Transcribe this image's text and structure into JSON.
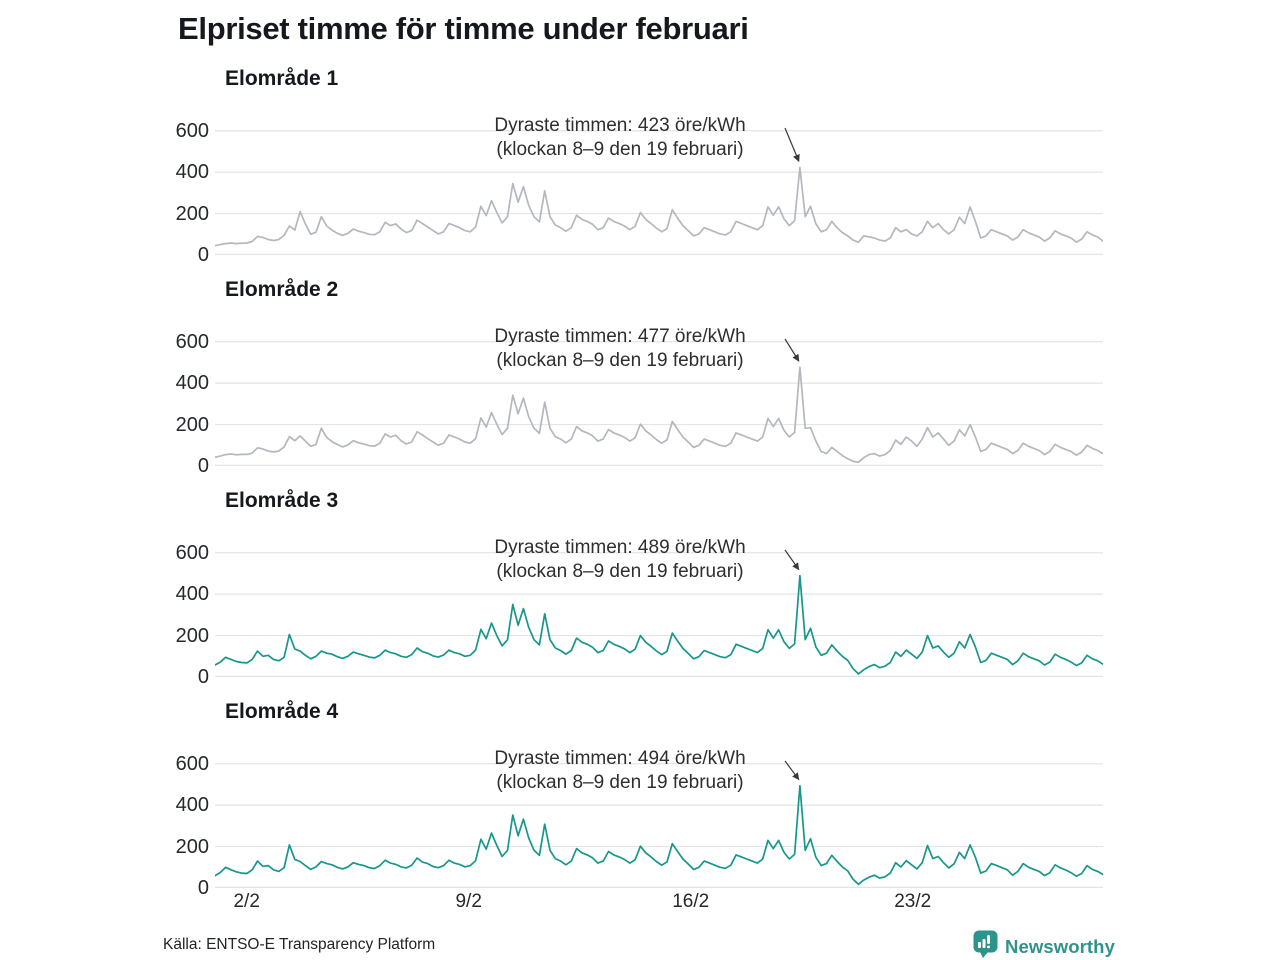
{
  "title": "Elpriset timme för timme under februari",
  "colors": {
    "gray_line": "#b5b7bf",
    "teal_line": "#17968b",
    "gridline": "#e3e4e6",
    "text_dark": "#15181c",
    "annotation_text": "#2e2e2e",
    "arrow": "#3a3a3a",
    "brand_teal": "#2e938b"
  },
  "y_ticks": [
    600,
    400,
    200,
    0
  ],
  "x_ticks": [
    {
      "label": "2/2",
      "day": 2
    },
    {
      "label": "9/2",
      "day": 9
    },
    {
      "label": "16/2",
      "day": 16
    },
    {
      "label": "23/2",
      "day": 23
    }
  ],
  "chart_data": [
    {
      "type": "line",
      "title": "Elområde 1",
      "color": "#b5b7bf",
      "ylim": [
        0,
        700
      ],
      "y_ticks": [
        0,
        200,
        400,
        600
      ],
      "x_range_days": 28,
      "sampling": "every 4 hours, 1–28 februari",
      "annotation": {
        "line1": "Dyraste timmen: 423 öre/kWh",
        "line2": "(klockan 8–9 den 19 februari)",
        "peak_value": 423
      },
      "values": [
        45,
        50,
        55,
        58,
        55,
        57,
        58,
        65,
        90,
        85,
        75,
        70,
        75,
        95,
        140,
        120,
        210,
        150,
        100,
        110,
        185,
        140,
        120,
        105,
        95,
        105,
        125,
        115,
        108,
        100,
        98,
        112,
        158,
        142,
        150,
        125,
        108,
        118,
        168,
        152,
        135,
        118,
        102,
        112,
        152,
        142,
        132,
        118,
        112,
        135,
        235,
        190,
        262,
        205,
        155,
        185,
        345,
        255,
        330,
        240,
        185,
        160,
        310,
        185,
        145,
        132,
        115,
        132,
        192,
        172,
        162,
        148,
        122,
        132,
        178,
        162,
        152,
        140,
        122,
        138,
        205,
        172,
        152,
        130,
        112,
        128,
        218,
        178,
        142,
        118,
        92,
        102,
        132,
        122,
        112,
        102,
        97,
        112,
        162,
        152,
        142,
        132,
        122,
        142,
        232,
        192,
        232,
        175,
        142,
        165,
        423,
        185,
        235,
        150,
        112,
        122,
        162,
        132,
        108,
        92,
        72,
        62,
        92,
        88,
        82,
        72,
        67,
        82,
        132,
        112,
        122,
        102,
        92,
        112,
        162,
        132,
        152,
        122,
        102,
        122,
        182,
        152,
        232,
        162,
        82,
        92,
        122,
        112,
        102,
        92,
        72,
        87,
        122,
        107,
        97,
        87,
        67,
        82,
        117,
        102,
        92,
        82,
        62,
        77,
        112,
        97,
        87,
        67
      ]
    },
    {
      "type": "line",
      "title": "Elområde 2",
      "color": "#b5b7bf",
      "ylim": [
        0,
        700
      ],
      "y_ticks": [
        0,
        200,
        400,
        600
      ],
      "x_range_days": 28,
      "sampling": "every 4 hours, 1–28 februari",
      "annotation": {
        "line1": "Dyraste timmen: 477 öre/kWh",
        "line2": "(klockan 8–9 den 19 februari)",
        "peak_value": 477
      },
      "values": [
        42,
        48,
        55,
        58,
        54,
        56,
        56,
        62,
        88,
        82,
        72,
        68,
        72,
        92,
        142,
        122,
        145,
        120,
        95,
        105,
        182,
        138,
        118,
        104,
        92,
        102,
        122,
        112,
        106,
        98,
        96,
        110,
        155,
        140,
        148,
        122,
        106,
        116,
        165,
        150,
        132,
        116,
        100,
        110,
        150,
        140,
        130,
        116,
        110,
        132,
        232,
        188,
        258,
        202,
        152,
        182,
        342,
        252,
        328,
        238,
        182,
        158,
        308,
        182,
        142,
        130,
        112,
        130,
        190,
        170,
        160,
        146,
        120,
        130,
        176,
        160,
        150,
        138,
        120,
        136,
        202,
        170,
        150,
        128,
        110,
        126,
        215,
        176,
        140,
        116,
        90,
        100,
        130,
        120,
        110,
        100,
        95,
        110,
        160,
        150,
        140,
        130,
        120,
        140,
        230,
        190,
        230,
        172,
        140,
        162,
        477,
        182,
        185,
        120,
        70,
        60,
        90,
        70,
        50,
        35,
        22,
        18,
        40,
        55,
        60,
        48,
        55,
        75,
        125,
        105,
        140,
        120,
        95,
        130,
        185,
        140,
        160,
        130,
        100,
        120,
        175,
        145,
        200,
        140,
        70,
        80,
        110,
        100,
        90,
        80,
        60,
        75,
        110,
        95,
        85,
        75,
        55,
        70,
        105,
        90,
        80,
        70,
        52,
        67,
        100,
        85,
        75,
        60
      ]
    },
    {
      "type": "line",
      "title": "Elområde 3",
      "color": "#17968b",
      "ylim": [
        0,
        700
      ],
      "y_ticks": [
        0,
        200,
        400,
        600
      ],
      "x_range_days": 28,
      "sampling": "every 4 hours, 1–28 februari",
      "annotation": {
        "line1": "Dyraste timmen: 489 öre/kWh",
        "line2": "(klockan 8–9 den 19 februari)",
        "peak_value": 489
      },
      "values": [
        58,
        72,
        95,
        85,
        75,
        70,
        68,
        85,
        125,
        100,
        105,
        85,
        78,
        95,
        205,
        135,
        125,
        105,
        88,
        100,
        125,
        115,
        110,
        98,
        90,
        100,
        120,
        112,
        105,
        96,
        92,
        105,
        130,
        118,
        112,
        100,
        95,
        108,
        140,
        122,
        115,
        102,
        96,
        106,
        130,
        118,
        112,
        100,
        105,
        130,
        230,
        185,
        260,
        200,
        150,
        180,
        350,
        250,
        330,
        240,
        180,
        155,
        305,
        180,
        140,
        128,
        110,
        128,
        188,
        168,
        158,
        144,
        118,
        128,
        174,
        158,
        148,
        136,
        118,
        134,
        200,
        168,
        148,
        126,
        108,
        124,
        212,
        174,
        138,
        114,
        88,
        98,
        128,
        118,
        108,
        98,
        93,
        108,
        158,
        148,
        138,
        128,
        118,
        138,
        228,
        188,
        228,
        170,
        138,
        160,
        489,
        180,
        235,
        145,
        105,
        115,
        155,
        125,
        100,
        80,
        40,
        15,
        35,
        50,
        60,
        45,
        52,
        70,
        120,
        100,
        130,
        110,
        90,
        120,
        200,
        140,
        150,
        120,
        95,
        115,
        170,
        140,
        205,
        145,
        70,
        80,
        115,
        105,
        95,
        85,
        60,
        78,
        115,
        98,
        88,
        78,
        58,
        72,
        110,
        95,
        85,
        72,
        55,
        68,
        105,
        88,
        78,
        62
      ]
    },
    {
      "type": "line",
      "title": "Elområde 4",
      "color": "#17968b",
      "ylim": [
        0,
        700
      ],
      "y_ticks": [
        0,
        200,
        400,
        600
      ],
      "x_range_days": 28,
      "sampling": "every 4 hours, 1–28 februari",
      "annotation": {
        "line1": "Dyraste timmen: 494 öre/kWh",
        "line2": "(klockan 8–9 den 19 februari)",
        "peak_value": 494
      },
      "values": [
        60,
        75,
        100,
        88,
        78,
        72,
        70,
        88,
        130,
        105,
        108,
        88,
        80,
        98,
        208,
        138,
        128,
        108,
        90,
        102,
        128,
        118,
        112,
        100,
        92,
        102,
        122,
        114,
        108,
        98,
        94,
        108,
        134,
        120,
        114,
        102,
        97,
        110,
        145,
        125,
        118,
        104,
        98,
        108,
        134,
        120,
        114,
        102,
        108,
        132,
        235,
        188,
        265,
        205,
        152,
        182,
        352,
        252,
        332,
        242,
        182,
        158,
        308,
        182,
        142,
        130,
        112,
        130,
        190,
        170,
        160,
        146,
        120,
        130,
        176,
        160,
        150,
        138,
        120,
        136,
        202,
        170,
        150,
        128,
        110,
        126,
        214,
        176,
        140,
        116,
        90,
        100,
        130,
        120,
        110,
        100,
        95,
        110,
        160,
        150,
        140,
        130,
        120,
        140,
        230,
        190,
        230,
        172,
        140,
        162,
        494,
        182,
        238,
        148,
        108,
        118,
        158,
        128,
        102,
        82,
        42,
        18,
        38,
        52,
        62,
        48,
        54,
        72,
        122,
        102,
        132,
        112,
        92,
        122,
        205,
        142,
        152,
        122,
        97,
        117,
        172,
        142,
        208,
        148,
        72,
        82,
        118,
        108,
        98,
        88,
        62,
        80,
        118,
        100,
        90,
        80,
        60,
        74,
        112,
        97,
        87,
        74,
        57,
        70,
        108,
        90,
        80,
        65
      ]
    }
  ],
  "footer": {
    "source": "Källa: ENTSO-E Transparency Platform",
    "brand": "Newsworthy"
  }
}
